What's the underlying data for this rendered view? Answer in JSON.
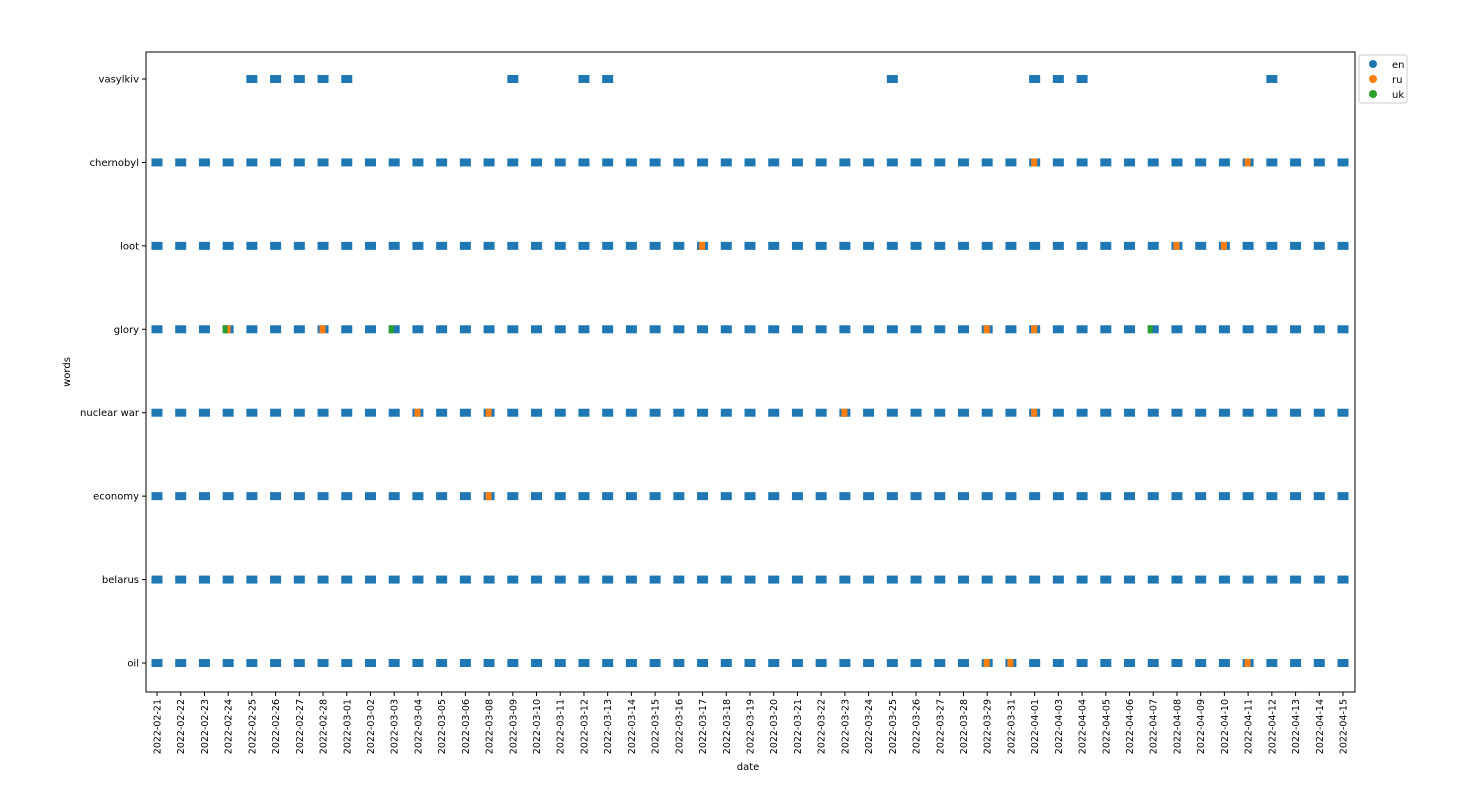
{
  "chart_data": {
    "type": "scatter",
    "xlabel": "date",
    "ylabel": "words",
    "categories_y": [
      "vasylkiv",
      "chernobyl",
      "loot",
      "glory",
      "nuclear war",
      "economy",
      "belarus",
      "oil"
    ],
    "dates": [
      "2022-02-21",
      "2022-02-22",
      "2022-02-23",
      "2022-02-24",
      "2022-02-25",
      "2022-02-26",
      "2022-02-27",
      "2022-02-28",
      "2022-03-01",
      "2022-03-02",
      "2022-03-03",
      "2022-03-04",
      "2022-03-05",
      "2022-03-06",
      "2022-03-08",
      "2022-03-09",
      "2022-03-10",
      "2022-03-11",
      "2022-03-12",
      "2022-03-13",
      "2022-03-14",
      "2022-03-15",
      "2022-03-16",
      "2022-03-17",
      "2022-03-18",
      "2022-03-19",
      "2022-03-20",
      "2022-03-21",
      "2022-03-22",
      "2022-03-23",
      "2022-03-24",
      "2022-03-25",
      "2022-03-26",
      "2022-03-27",
      "2022-03-28",
      "2022-03-29",
      "2022-03-31",
      "2022-04-01",
      "2022-04-03",
      "2022-04-04",
      "2022-04-05",
      "2022-04-06",
      "2022-04-07",
      "2022-04-08",
      "2022-04-09",
      "2022-04-10",
      "2022-04-11",
      "2022-04-12",
      "2022-04-13",
      "2022-04-14",
      "2022-04-15"
    ],
    "legend": {
      "position": "upper right",
      "entries": [
        {
          "label": "en",
          "color": "#1f77b4"
        },
        {
          "label": "ru",
          "color": "#ff7f0e"
        },
        {
          "label": "uk",
          "color": "#2ca02c"
        }
      ]
    },
    "series": [
      {
        "word": "vasylkiv",
        "en_dates": [
          "2022-02-25",
          "2022-02-26",
          "2022-02-27",
          "2022-02-28",
          "2022-03-01",
          "2022-03-09",
          "2022-03-12",
          "2022-03-13",
          "2022-03-25",
          "2022-04-01",
          "2022-04-03",
          "2022-04-04",
          "2022-04-12"
        ],
        "ru_dates": [],
        "uk_dates": []
      },
      {
        "word": "chernobyl",
        "en_dates": "all",
        "ru_dates": [
          "2022-04-01",
          "2022-04-11"
        ],
        "uk_dates": []
      },
      {
        "word": "loot",
        "en_dates": "all",
        "ru_dates": [
          "2022-03-17",
          "2022-04-08",
          "2022-04-10"
        ],
        "uk_dates": []
      },
      {
        "word": "glory",
        "en_dates": "all",
        "ru_dates": [
          "2022-02-24",
          "2022-02-28",
          "2022-03-29",
          "2022-04-01"
        ],
        "uk_dates": [
          "2022-02-24",
          "2022-03-03",
          "2022-04-07"
        ]
      },
      {
        "word": "nuclear war",
        "en_dates": "all",
        "ru_dates": [
          "2022-03-04",
          "2022-03-08",
          "2022-03-23",
          "2022-04-01"
        ],
        "uk_dates": []
      },
      {
        "word": "economy",
        "en_dates": "all",
        "ru_dates": [
          "2022-03-08"
        ],
        "uk_dates": []
      },
      {
        "word": "belarus",
        "en_dates": "all",
        "ru_dates": [],
        "uk_dates": []
      },
      {
        "word": "oil",
        "en_dates": "all",
        "ru_dates": [
          "2022-03-29",
          "2022-03-31",
          "2022-04-11"
        ],
        "uk_dates": []
      }
    ]
  }
}
